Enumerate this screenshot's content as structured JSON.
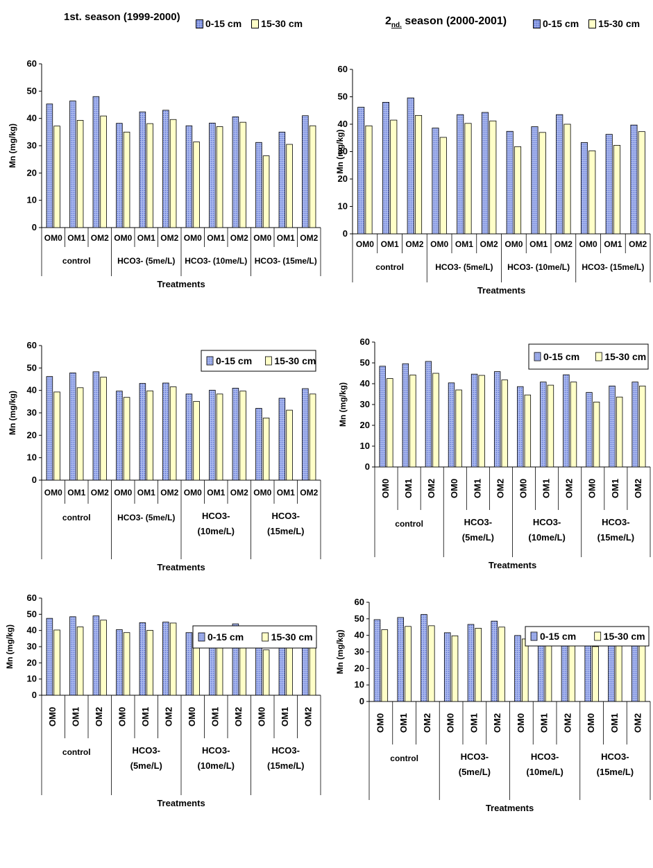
{
  "headers": {
    "left": "1st. season (1999-2000)",
    "right_prefix": "2",
    "right_sub": "nd.",
    "right_suffix": " season (2000-2001)"
  },
  "legend_labels": [
    "0-15 cm",
    "15-30 cm"
  ],
  "colors": {
    "series_a": "#a9b8ee",
    "series_a_dots": "#5a6fd0",
    "series_b": "#ffffc8",
    "stroke": "#000000"
  },
  "chart_data": [
    {
      "type": "bar",
      "ylabel": "Mn (mg/kg)",
      "xlabel": "Treatments",
      "ylim": [
        0,
        60
      ],
      "yticks": [
        0,
        10,
        20,
        30,
        40,
        50,
        60
      ],
      "groups": [
        "control",
        "HCO3- (5me/L)",
        "HCO3- (10me/L)",
        "HCO3- (15me/L)"
      ],
      "categories": [
        "OM0",
        "OM1",
        "OM2",
        "OM0",
        "OM1",
        "OM2",
        "OM0",
        "OM1",
        "OM2",
        "OM0",
        "OM1",
        "OM2"
      ],
      "series": [
        {
          "name": "0-15 cm",
          "values": [
            45.3,
            46.4,
            48.0,
            38.2,
            42.4,
            43.0,
            37.3,
            38.3,
            40.6,
            31.2,
            35.0,
            41.0
          ]
        },
        {
          "name": "15-30 cm",
          "values": [
            37.2,
            39.3,
            40.9,
            35.0,
            38.1,
            39.6,
            31.4,
            37.0,
            38.6,
            26.3,
            30.5,
            37.3
          ]
        }
      ]
    },
    {
      "type": "bar",
      "ylabel": "Mn (mg/kg)",
      "xlabel": "Treatments",
      "ylim": [
        0,
        60
      ],
      "yticks": [
        0,
        10,
        20,
        30,
        40,
        50,
        60
      ],
      "groups": [
        "control",
        "HCO3- (5me/L)",
        "HCO3- (10me/L)",
        "HCO3- (15me/L)"
      ],
      "categories": [
        "OM0",
        "OM1",
        "OM2",
        "OM0",
        "OM1",
        "OM2",
        "OM0",
        "OM1",
        "OM2",
        "OM0",
        "OM1",
        "OM2"
      ],
      "series": [
        {
          "name": "0-15 cm",
          "values": [
            46.2,
            48.0,
            49.6,
            38.6,
            43.5,
            44.3,
            37.4,
            39.1,
            43.5,
            33.3,
            36.3,
            39.7
          ]
        },
        {
          "name": "15-30 cm",
          "values": [
            39.4,
            41.5,
            43.2,
            35.2,
            40.3,
            41.2,
            31.8,
            37.0,
            40.0,
            30.3,
            32.3,
            37.3
          ]
        }
      ]
    },
    {
      "type": "bar",
      "ylabel": "Mn (mg/kg)",
      "xlabel": "Treatments",
      "ylim": [
        0,
        60
      ],
      "yticks": [
        0,
        10,
        20,
        30,
        40,
        50,
        60
      ],
      "groups": [
        "control",
        "HCO3- (5me/L)",
        "HCO3- (10me/L)",
        "HCO3- (15me/L)"
      ],
      "categories": [
        "OM0",
        "OM1",
        "OM2",
        "OM0",
        "OM1",
        "OM2",
        "OM0",
        "OM1",
        "OM2",
        "OM0",
        "OM1",
        "OM2"
      ],
      "series": [
        {
          "name": "0-15 cm",
          "values": [
            46.2,
            47.8,
            48.3,
            39.7,
            43.1,
            43.3,
            38.4,
            40.1,
            41.0,
            32.0,
            36.5,
            40.8
          ]
        },
        {
          "name": "15-30 cm",
          "values": [
            39.3,
            41.2,
            45.9,
            36.9,
            39.8,
            41.6,
            35.1,
            38.4,
            39.7,
            27.7,
            31.2,
            38.4
          ]
        }
      ]
    },
    {
      "type": "bar",
      "ylabel": "Mn (mg/kg)",
      "xlabel": "Treatments",
      "ylim": [
        0,
        60
      ],
      "yticks": [
        0,
        10,
        20,
        30,
        40,
        50,
        60
      ],
      "groups": [
        "control",
        "HCO3- (5me/L)",
        "HCO3- (10me/L)",
        "HCO3- (15me/L)"
      ],
      "categories": [
        "OM0",
        "OM1",
        "OM2",
        "OM0",
        "OM1",
        "OM2",
        "OM0",
        "OM1",
        "OM2",
        "OM0",
        "OM1",
        "OM2"
      ],
      "series": [
        {
          "name": "0-15 cm",
          "values": [
            48.4,
            49.6,
            50.7,
            40.4,
            44.6,
            45.8,
            38.6,
            40.8,
            44.3,
            35.8,
            38.9,
            40.8
          ]
        },
        {
          "name": "15-30 cm",
          "values": [
            42.5,
            44.2,
            45.0,
            37.0,
            44.0,
            41.8,
            34.6,
            39.3,
            40.8,
            31.2,
            33.6,
            38.9
          ]
        }
      ]
    },
    {
      "type": "bar",
      "ylabel": "Mn (mg/kg)",
      "xlabel": "Treatments",
      "ylim": [
        0,
        60
      ],
      "yticks": [
        0,
        10,
        20,
        30,
        40,
        50,
        60
      ],
      "groups": [
        "control",
        "HCO3- (5me/L)",
        "HCO3- (10me/L)",
        "HCO3- (15me/L)"
      ],
      "categories": [
        "OM0",
        "OM1",
        "OM2",
        "OM0",
        "OM1",
        "OM2",
        "OM0",
        "OM1",
        "OM2",
        "OM0",
        "OM1",
        "OM2"
      ],
      "series": [
        {
          "name": "0-15 cm",
          "values": [
            47.5,
            48.5,
            49.0,
            40.5,
            44.8,
            45.2,
            38.7,
            41.0,
            44.1,
            32.3,
            40.1,
            41.2
          ]
        },
        {
          "name": "15-30 cm",
          "values": [
            40.3,
            42.2,
            46.4,
            38.7,
            40.1,
            44.6,
            36.2,
            39.7,
            40.4,
            28.0,
            34.6,
            39.5
          ]
        }
      ]
    },
    {
      "type": "bar",
      "ylabel": "Mn (mg/kg)",
      "xlabel": "Treatments",
      "ylim": [
        0,
        60
      ],
      "yticks": [
        0,
        10,
        20,
        30,
        40,
        50,
        60
      ],
      "groups": [
        "control",
        "HCO3- (5me/L)",
        "HCO3- (10me/L)",
        "HCO3- (15me/L)"
      ],
      "categories": [
        "OM0",
        "OM1",
        "OM2",
        "OM0",
        "OM1",
        "OM2",
        "OM0",
        "OM1",
        "OM2",
        "OM0",
        "OM1",
        "OM2"
      ],
      "series": [
        {
          "name": "0-15 cm",
          "values": [
            49.5,
            50.8,
            52.6,
            41.6,
            46.6,
            48.6,
            39.9,
            41.7,
            44.7,
            37.0,
            39.9,
            41.1
          ]
        },
        {
          "name": "15-30 cm",
          "values": [
            43.4,
            45.4,
            45.8,
            39.7,
            44.3,
            45.0,
            37.8,
            39.9,
            42.2,
            33.2,
            35.8,
            39.7
          ]
        }
      ]
    }
  ]
}
